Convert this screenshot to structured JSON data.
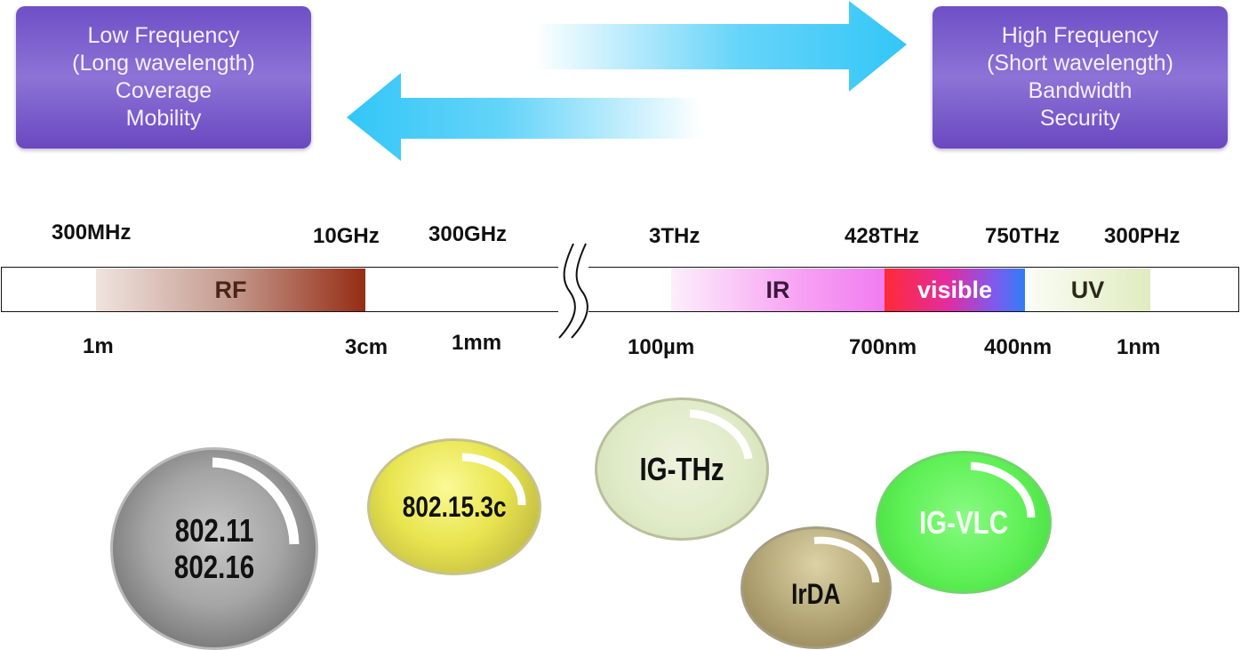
{
  "low_box": {
    "lines": [
      "Low Frequency",
      "(Long wavelength)",
      "Coverage",
      "Mobility"
    ]
  },
  "high_box": {
    "lines": [
      "High Frequency",
      "(Short wavelength)",
      "Bandwidth",
      "Security"
    ]
  },
  "frequencies": [
    "300MHz",
    "10GHz",
    "300GHz",
    "3THz",
    "428THz",
    "750THz",
    "300PHz"
  ],
  "wavelengths": [
    "1m",
    "3cm",
    "1mm",
    "100µm",
    "700nm",
    "400nm",
    "1nm"
  ],
  "bands": {
    "rf": "RF",
    "ir": "IR",
    "visible": "visible",
    "uv": "UV"
  },
  "technologies": {
    "c1_line1": "802.11",
    "c1_line2": "802.16",
    "c2": "802.15.3c",
    "c3": "IG-THz",
    "c4": "IrDA",
    "c5": "IG-VLC"
  },
  "colors": {
    "box": "#7b5ccc",
    "arrow": "#33c6f7",
    "rf": "#962c14",
    "ir": "#f17cf1",
    "visible": "#ff2a36",
    "uv": "#dfecbf"
  }
}
